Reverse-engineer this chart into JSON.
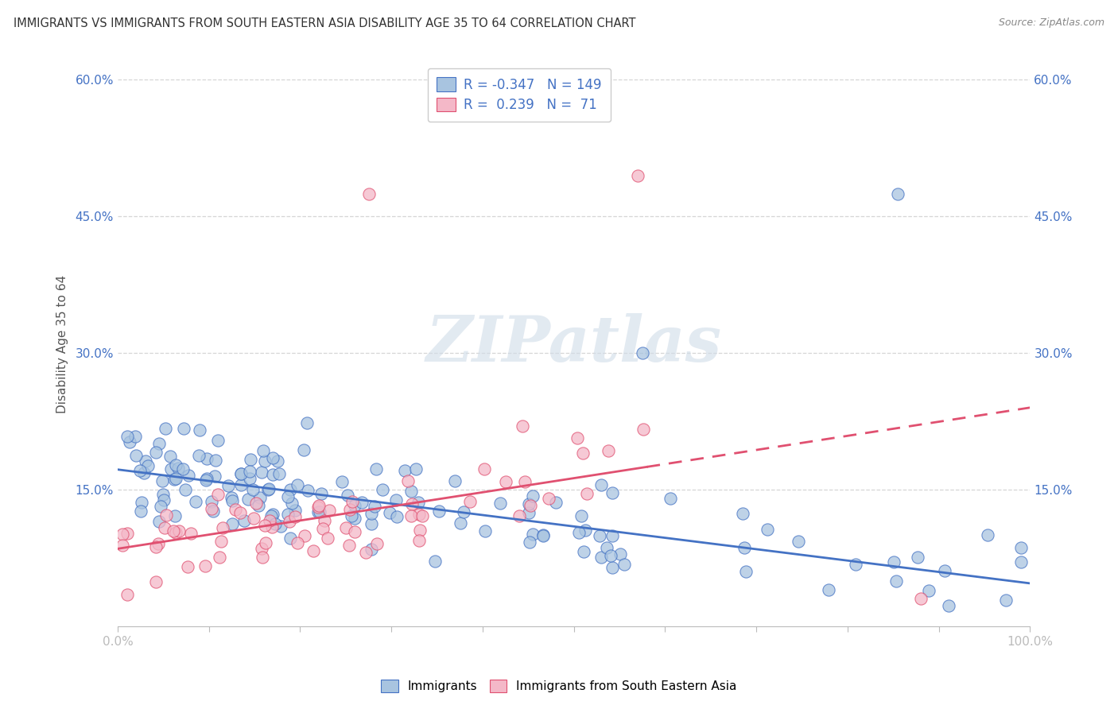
{
  "title": "IMMIGRANTS VS IMMIGRANTS FROM SOUTH EASTERN ASIA DISABILITY AGE 35 TO 64 CORRELATION CHART",
  "source": "Source: ZipAtlas.com",
  "ylabel": "Disability Age 35 to 64",
  "xlim": [
    0,
    1.0
  ],
  "ylim": [
    0,
    0.62
  ],
  "ytick_vals": [
    0.0,
    0.15,
    0.3,
    0.45,
    0.6
  ],
  "ytick_labels": [
    "",
    "15.0%",
    "30.0%",
    "45.0%",
    "60.0%"
  ],
  "xtick_vals": [
    0.0,
    0.1,
    0.2,
    0.3,
    0.4,
    0.5,
    0.6,
    0.7,
    0.8,
    0.9,
    1.0
  ],
  "xtick_labels": [
    "0.0%",
    "",
    "",
    "",
    "",
    "",
    "",
    "",
    "",
    "",
    "100.0%"
  ],
  "blue_R": -0.347,
  "blue_N": 149,
  "pink_R": 0.239,
  "pink_N": 71,
  "blue_fill": "#a8c4e0",
  "blue_edge": "#4472c4",
  "pink_fill": "#f4b8c8",
  "pink_edge": "#e05070",
  "blue_line": "#4472c4",
  "pink_line": "#e05070",
  "blue_intercept": 0.172,
  "blue_slope": -0.125,
  "pink_intercept": 0.085,
  "pink_slope": 0.155,
  "pink_data_xlim": 0.58,
  "grid_color": "#cccccc",
  "axis_color": "#bbbbbb",
  "tick_color": "#4472c4",
  "watermark_color": "#d0dce8",
  "background": "#ffffff",
  "legend_label_blue": "Immigrants",
  "legend_label_pink": "Immigrants from South Eastern Asia",
  "scatter_size": 120
}
